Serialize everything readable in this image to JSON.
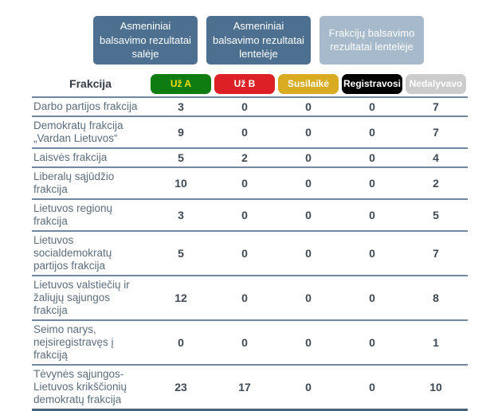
{
  "view_buttons": [
    {
      "key": "asmeniniai-saleje",
      "label": "Asmeniniai balsavimo rezultatai salėje",
      "state": "default"
    },
    {
      "key": "asmeniniai-lenteleje",
      "label": "Asmeniniai balsavimo rezultatai lentelėje",
      "state": "default"
    },
    {
      "key": "frakciju-lenteleje",
      "label": "Frakcijų balsavimo rezultatai lentelėje",
      "state": "active"
    }
  ],
  "table": {
    "fraction_header": "Frakcija",
    "vote_columns": [
      {
        "key": "uz-a",
        "label": "Už A",
        "bg": "#0f7c11",
        "fg": "#ffdf00"
      },
      {
        "key": "uz-b",
        "label": "Už B",
        "bg": "#dd1f26",
        "fg": "#ffffff"
      },
      {
        "key": "susilaike",
        "label": "Susilaikė",
        "bg": "#d8ab20",
        "fg": "#ffffff"
      },
      {
        "key": "registravosi",
        "label": "Registravosi",
        "bg": "#000000",
        "fg": "#ffffff"
      },
      {
        "key": "nedalyvavo",
        "label": "Nedalyvavo",
        "bg": "#cccccc",
        "fg": "#ffffff"
      }
    ],
    "rows": [
      {
        "fraction": "Darbo partijos frakcija",
        "values": [
          3,
          0,
          0,
          0,
          7
        ]
      },
      {
        "fraction": "Demokratų frakcija „Vardan Lietuvos“",
        "values": [
          9,
          0,
          0,
          0,
          7
        ]
      },
      {
        "fraction": "Laisvės frakcija",
        "values": [
          5,
          2,
          0,
          0,
          4
        ]
      },
      {
        "fraction": "Liberalų sąjūdžio frakcija",
        "values": [
          10,
          0,
          0,
          0,
          2
        ]
      },
      {
        "fraction": "Lietuvos regionų frakcija",
        "values": [
          3,
          0,
          0,
          0,
          5
        ]
      },
      {
        "fraction": "Lietuvos socialdemokratų partijos frakcija",
        "values": [
          5,
          0,
          0,
          0,
          7
        ]
      },
      {
        "fraction": "Lietuvos valstiečių ir žaliųjų sąjungos frakcija",
        "values": [
          12,
          0,
          0,
          0,
          8
        ]
      },
      {
        "fraction": "Seimo narys, neįsiregistravęs į frakciją",
        "values": [
          0,
          0,
          0,
          0,
          1
        ]
      },
      {
        "fraction": "Tėvynės sąjungos-Lietuvos krikščionių demokratų frakcija",
        "values": [
          23,
          17,
          0,
          0,
          10
        ]
      }
    ]
  },
  "colors": {
    "button_bg": "#4d7090",
    "button_active_bg": "#a6bacb",
    "button_text": "#ffffff",
    "row_separator": "#72879c",
    "table_bottom_border": "#49637a",
    "header_text": "#333b44",
    "fraction_text": "#5c6d7c",
    "value_text": "#3d4852"
  }
}
